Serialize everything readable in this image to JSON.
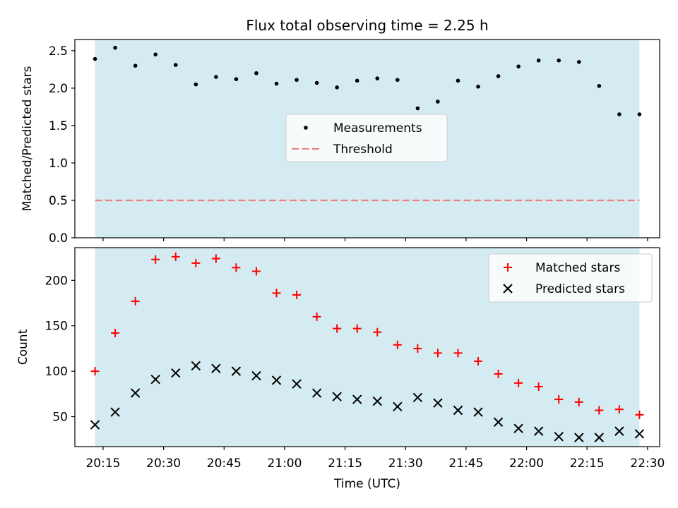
{
  "chart_data": [
    {
      "type": "scatter",
      "title": "Flux total observing time = 2.25 h",
      "xlabel": "",
      "ylabel": "Matched/Predicted stars",
      "xlim": [
        "20:08",
        "22:33"
      ],
      "ylim": [
        0,
        2.65
      ],
      "yticks": [
        0.0,
        0.5,
        1.0,
        1.5,
        2.0,
        2.5
      ],
      "ytick_labels": [
        "0.0",
        "0.5",
        "1.0",
        "1.5",
        "2.0",
        "2.5"
      ],
      "shaded_span": [
        "20:13",
        "22:28"
      ],
      "legend_position": "center",
      "series": [
        {
          "name": "Measurements",
          "marker": "dot",
          "color": "#000000",
          "x": [
            "20:13",
            "20:18",
            "20:23",
            "20:28",
            "20:33",
            "20:38",
            "20:43",
            "20:48",
            "20:53",
            "20:58",
            "21:03",
            "21:08",
            "21:13",
            "21:18",
            "21:23",
            "21:28",
            "21:33",
            "21:38",
            "21:43",
            "21:48",
            "21:53",
            "21:58",
            "22:03",
            "22:08",
            "22:13",
            "22:18",
            "22:23",
            "22:28"
          ],
          "y": [
            2.39,
            2.54,
            2.3,
            2.45,
            2.31,
            2.05,
            2.15,
            2.12,
            2.2,
            2.06,
            2.11,
            2.07,
            2.01,
            2.1,
            2.13,
            2.11,
            1.73,
            1.82,
            2.1,
            2.02,
            2.16,
            2.29,
            2.37,
            2.37,
            2.35,
            2.03,
            1.65,
            1.65
          ]
        },
        {
          "name": "Threshold",
          "style": "dashed",
          "color": "#f08080",
          "x": [
            "20:13",
            "22:28"
          ],
          "y": [
            0.5,
            0.5
          ]
        }
      ]
    },
    {
      "type": "scatter",
      "title": "",
      "xlabel": "Time (UTC)",
      "ylabel": "Count",
      "xlim": [
        "20:08",
        "22:33"
      ],
      "ylim": [
        17,
        236
      ],
      "xticks": [
        "20:15",
        "20:30",
        "20:45",
        "21:00",
        "21:15",
        "21:30",
        "21:45",
        "22:00",
        "22:15",
        "22:30"
      ],
      "yticks": [
        50,
        100,
        150,
        200
      ],
      "ytick_labels": [
        "50",
        "100",
        "150",
        "200"
      ],
      "shaded_span": [
        "20:13",
        "22:28"
      ],
      "legend_position": "upper right",
      "series": [
        {
          "name": "Matched stars",
          "marker": "plus",
          "color": "#ff0000",
          "x": [
            "20:13",
            "20:18",
            "20:23",
            "20:28",
            "20:33",
            "20:38",
            "20:43",
            "20:48",
            "20:53",
            "20:58",
            "21:03",
            "21:08",
            "21:13",
            "21:18",
            "21:23",
            "21:28",
            "21:33",
            "21:38",
            "21:43",
            "21:48",
            "21:53",
            "21:58",
            "22:03",
            "22:08",
            "22:13",
            "22:18",
            "22:23",
            "22:28"
          ],
          "y": [
            100,
            142,
            177,
            223,
            226,
            219,
            224,
            214,
            210,
            186,
            184,
            160,
            147,
            147,
            143,
            129,
            125,
            120,
            120,
            111,
            97,
            87,
            83,
            69,
            66,
            57,
            58,
            52
          ]
        },
        {
          "name": "Predicted stars",
          "marker": "x",
          "color": "#000000",
          "x": [
            "20:13",
            "20:18",
            "20:23",
            "20:28",
            "20:33",
            "20:38",
            "20:43",
            "20:48",
            "20:53",
            "20:58",
            "21:03",
            "21:08",
            "21:13",
            "21:18",
            "21:23",
            "21:28",
            "21:33",
            "21:38",
            "21:43",
            "21:48",
            "21:53",
            "21:58",
            "22:03",
            "22:08",
            "22:13",
            "22:18",
            "22:23",
            "22:28"
          ],
          "y": [
            41,
            55,
            76,
            91,
            98,
            106,
            103,
            100,
            95,
            90,
            86,
            76,
            72,
            69,
            67,
            61,
            71,
            65,
            57,
            55,
            44,
            37,
            34,
            28,
            27,
            27,
            34,
            31
          ]
        }
      ]
    }
  ],
  "colors": {
    "shade": "#d4ebf1",
    "axis": "#000000"
  }
}
